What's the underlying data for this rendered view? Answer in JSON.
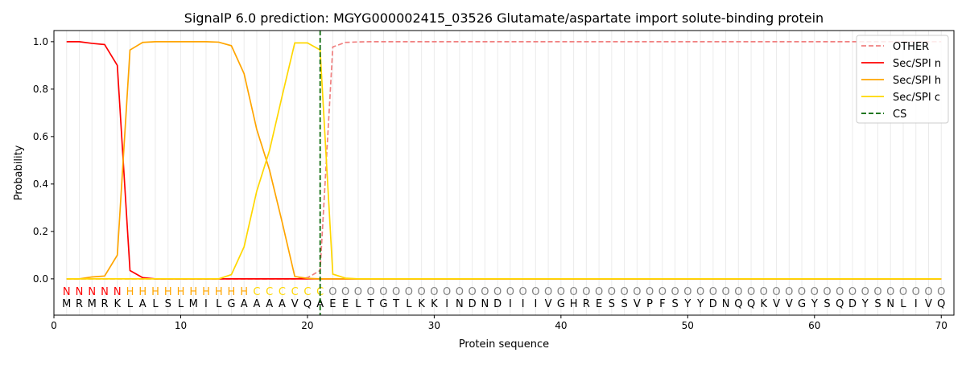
{
  "chart_data": {
    "type": "line",
    "title": "SignalP 6.0 prediction: MGYG000002415_03526 Glutamate/aspartate import solute-binding protein",
    "xlabel": "Protein sequence",
    "ylabel": "Probability",
    "xlim": [
      0,
      71
    ],
    "ylim": [
      -0.153,
      1.047
    ],
    "xticks": [
      0,
      10,
      20,
      30,
      40,
      50,
      60,
      70
    ],
    "yticks": [
      0.0,
      0.2,
      0.4,
      0.6,
      0.8,
      1.0
    ],
    "grid": "vertical lines at each residue",
    "legend_placement": "top-right",
    "sequence": "MRMRKLALSLMILGAAAAVQAEELTGTLKKINDNDIIIVGHRESSVPFSYYDNQQKVVGYSQDYSNLIVQ",
    "labels": "NNNNNHHHHHHHHHHCCCCCCOOOOOOOOOOOOOOOOOOOOOOOOOOOOOOOOOOOOOOOOOOOOOOOOO",
    "label_colors": {
      "N": "#ff0000",
      "H": "#ffa500",
      "C": "#ffd700",
      "O": "#808080"
    },
    "cs_position": 21,
    "series": [
      {
        "name": "OTHER",
        "color": "#f08080",
        "dash": true,
        "values": [
          0,
          0,
          0,
          0,
          0,
          0,
          0,
          0,
          0,
          0,
          0,
          0,
          0,
          0,
          0,
          0,
          0,
          0,
          0,
          0.005,
          0.035,
          0.978,
          0.997,
          0.999,
          1,
          1,
          1,
          1,
          1,
          1,
          1,
          1,
          1,
          1,
          1,
          1,
          1,
          1,
          1,
          1,
          1,
          1,
          1,
          1,
          1,
          1,
          1,
          1,
          1,
          1,
          1,
          1,
          1,
          1,
          1,
          1,
          1,
          1,
          1,
          1,
          1,
          1,
          1,
          1,
          1,
          1,
          1,
          1,
          1,
          1
        ]
      },
      {
        "name": "Sec/SPI n",
        "color": "#ff0000",
        "values": [
          1.0,
          1.0,
          0.993,
          0.988,
          0.9,
          0.035,
          0.005,
          0,
          0,
          0,
          0,
          0,
          0,
          0,
          0,
          0,
          0,
          0,
          0,
          0,
          0,
          0,
          0,
          0,
          0,
          0,
          0,
          0,
          0,
          0,
          0,
          0,
          0,
          0,
          0,
          0,
          0,
          0,
          0,
          0,
          0,
          0,
          0,
          0,
          0,
          0,
          0,
          0,
          0,
          0,
          0,
          0,
          0,
          0,
          0,
          0,
          0,
          0,
          0,
          0,
          0,
          0,
          0,
          0,
          0,
          0,
          0,
          0,
          0,
          0
        ]
      },
      {
        "name": "Sec/SPI h",
        "color": "#ffa500",
        "values": [
          0,
          0,
          0.008,
          0.012,
          0.1,
          0.965,
          0.997,
          1,
          1,
          1,
          1,
          1,
          0.998,
          0.983,
          0.865,
          0.63,
          0.46,
          0.24,
          0.01,
          0.002,
          0,
          0,
          0,
          0,
          0,
          0,
          0,
          0,
          0,
          0,
          0,
          0,
          0,
          0,
          0,
          0,
          0,
          0,
          0,
          0,
          0,
          0,
          0,
          0,
          0,
          0,
          0,
          0,
          0,
          0,
          0,
          0,
          0,
          0,
          0,
          0,
          0,
          0,
          0,
          0,
          0,
          0,
          0,
          0,
          0,
          0,
          0,
          0,
          0,
          0
        ]
      },
      {
        "name": "Sec/SPI c",
        "color": "#ffd700",
        "values": [
          0,
          0,
          0,
          0,
          0,
          0,
          0,
          0,
          0,
          0,
          0,
          0,
          0,
          0.018,
          0.135,
          0.37,
          0.54,
          0.77,
          0.995,
          0.995,
          0.965,
          0.02,
          0.003,
          0,
          0,
          0,
          0,
          0,
          0,
          0,
          0,
          0,
          0,
          0,
          0,
          0,
          0,
          0,
          0,
          0,
          0,
          0,
          0,
          0,
          0,
          0,
          0,
          0,
          0,
          0,
          0,
          0,
          0,
          0,
          0,
          0,
          0,
          0,
          0,
          0,
          0,
          0,
          0,
          0,
          0,
          0,
          0,
          0,
          0,
          0
        ]
      }
    ],
    "cs_legend": {
      "name": "CS",
      "color": "#006400"
    }
  }
}
